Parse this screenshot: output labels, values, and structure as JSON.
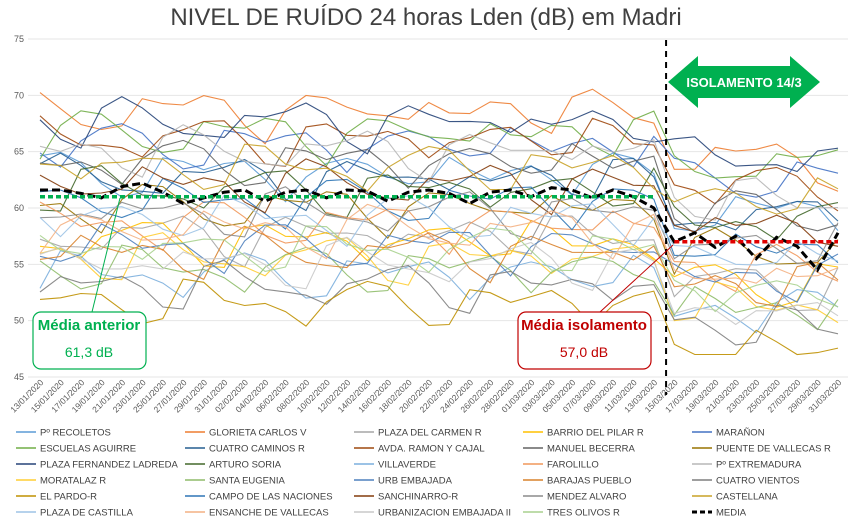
{
  "chart_data": {
    "type": "line",
    "title": "NIVEL DE RUÍDO 24 horas Lden (dB) em Madri",
    "ylim": [
      45,
      75
    ],
    "yticks": [
      45,
      50,
      55,
      60,
      65,
      70,
      75
    ],
    "x": [
      "13/01/2020",
      "15/01/2020",
      "17/01/2020",
      "19/01/2020",
      "21/01/2020",
      "23/01/2020",
      "25/01/2020",
      "27/01/2020",
      "29/01/2020",
      "31/01/2020",
      "02/02/2020",
      "04/02/2020",
      "06/02/2020",
      "08/02/2020",
      "10/02/2020",
      "12/02/2020",
      "14/02/2020",
      "16/02/2020",
      "18/02/2020",
      "20/02/2020",
      "22/02/2020",
      "24/02/2020",
      "26/02/2020",
      "28/02/2020",
      "01/03/2020",
      "03/03/2020",
      "05/03/2020",
      "07/03/2020",
      "09/03/2020",
      "11/03/2020",
      "13/03/2020",
      "15/03/2020",
      "17/03/2020",
      "19/03/2020",
      "21/03/2020",
      "23/03/2020",
      "25/03/2020",
      "27/03/2020",
      "29/03/2020",
      "31/03/2020"
    ],
    "grid": true,
    "legend": "bottom",
    "series": [
      {
        "name": "Pº RECOLETOS",
        "color": "#5b9bd5",
        "base": 63.5
      },
      {
        "name": "GLORIETA CARLOS V",
        "color": "#ed7d31",
        "base": 69.0
      },
      {
        "name": "PLAZA DEL CARMEN R",
        "color": "#a5a5a5",
        "base": 58.0
      },
      {
        "name": "BARRIO DEL PILAR R",
        "color": "#ffc000",
        "base": 57.5
      },
      {
        "name": "MARAÑON",
        "color": "#4472c4",
        "base": 66.0
      },
      {
        "name": "ESCUELAS AGUIRRE",
        "color": "#70ad47",
        "base": 67.0
      },
      {
        "name": "CUATRO CAMINOS R",
        "color": "#255e91",
        "base": 63.0
      },
      {
        "name": "AVDA. RAMON Y CAJAL",
        "color": "#9e480e",
        "base": 66.5
      },
      {
        "name": "MANUEL BECERRA",
        "color": "#636363",
        "base": 64.5
      },
      {
        "name": "PUENTE DE VALLECAS R",
        "color": "#997300",
        "base": 60.5
      },
      {
        "name": "PLAZA FERNANDEZ LADREDA",
        "color": "#264478",
        "base": 68.0
      },
      {
        "name": "ARTURO SORIA",
        "color": "#43682b",
        "base": 62.0
      },
      {
        "name": "VILLAVERDE",
        "color": "#7cafdd",
        "base": 54.5
      },
      {
        "name": "FAROLILLO",
        "color": "#f1975a",
        "base": 59.0
      },
      {
        "name": "Pº EXTREMADURA",
        "color": "#b7b7b7",
        "base": 65.5
      },
      {
        "name": "MORATALAZ R",
        "color": "#ffcd33",
        "base": 56.0
      },
      {
        "name": "SANTA EUGENIA",
        "color": "#8fbc6a",
        "base": 55.0
      },
      {
        "name": "URB EMBAJADA",
        "color": "#4f81bd",
        "base": 57.0
      },
      {
        "name": "BARAJAS PUEBLO",
        "color": "#d9822b",
        "base": 56.5
      },
      {
        "name": "CUATRO VIENTOS",
        "color": "#7f7f7f",
        "base": 53.5
      },
      {
        "name": "EL PARDO-R",
        "color": "#bf9000",
        "base": 52.0
      },
      {
        "name": "CAMPO DE LAS NACIONES",
        "color": "#2e75b6",
        "base": 61.0
      },
      {
        "name": "SANCHINARRO-R",
        "color": "#843c0c",
        "base": 62.5
      },
      {
        "name": "MENDEZ ALVARO",
        "color": "#8c8c8c",
        "base": 60.0
      },
      {
        "name": "CASTELLANA",
        "color": "#c9a227",
        "base": 64.0
      },
      {
        "name": "PLAZA DE CASTILLA",
        "color": "#9dc3e6",
        "base": 59.5
      },
      {
        "name": "ENSANCHE DE VALLECAS",
        "color": "#f4b183",
        "base": 58.5
      },
      {
        "name": "URBANIZACION EMBAJADA II",
        "color": "#c9c9c9",
        "base": 55.5
      },
      {
        "name": "TRES OLIVOS R",
        "color": "#a9d18e",
        "base": 56.8
      },
      {
        "name": "MEDIA",
        "color": "#000000",
        "dashed": true,
        "values": [
          61.6,
          61.6,
          61.3,
          60.9,
          61.9,
          62.2,
          61.4,
          60.4,
          60.9,
          61.4,
          61.6,
          60.6,
          61.4,
          61.6,
          60.9,
          61.6,
          61.5,
          60.6,
          61.4,
          61.6,
          61.3,
          60.4,
          61.4,
          61.6,
          61.0,
          61.8,
          61.6,
          60.9,
          61.6,
          61.0,
          60.0,
          57.0,
          57.8,
          56.5,
          57.5,
          55.5,
          57.4,
          56.6,
          54.5,
          57.8
        ]
      }
    ],
    "annotations": [
      {
        "label": "Média anterior",
        "value": "61,3 dB",
        "color": "#00b050"
      },
      {
        "label": "Média isolamento",
        "value": "57,0 dB",
        "color": "#c00000"
      },
      {
        "label": "ISOLAMENTO 14/3",
        "color": "#00b050"
      }
    ]
  }
}
